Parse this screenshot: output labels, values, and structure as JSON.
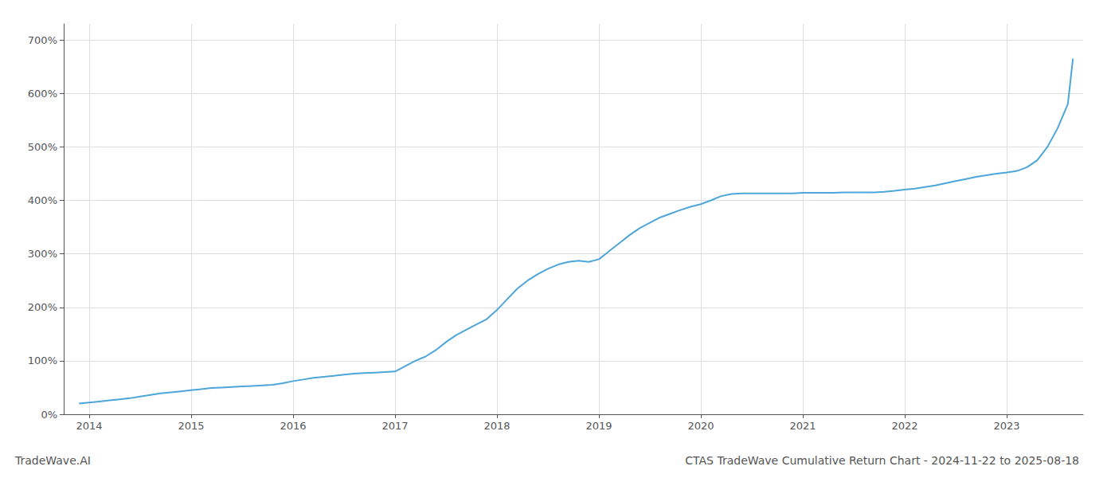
{
  "chart_data": {
    "type": "line",
    "title": "CTAS TradeWave Cumulative Return Chart - 2024-11-22 to 2025-08-18",
    "annotations": [
      {
        "text": "TradeWave.AI"
      }
    ],
    "color": "#4da6d9",
    "grid": true,
    "x": [
      2013.9,
      2014.0,
      2014.1,
      2014.2,
      2014.3,
      2014.4,
      2014.5,
      2014.6,
      2014.7,
      2014.8,
      2014.9,
      2015.0,
      2015.1,
      2015.2,
      2015.3,
      2015.4,
      2015.5,
      2015.6,
      2015.7,
      2015.8,
      2015.9,
      2016.0,
      2016.1,
      2016.2,
      2016.3,
      2016.4,
      2016.5,
      2016.6,
      2016.7,
      2016.8,
      2016.9,
      2017.0,
      2017.1,
      2017.2,
      2017.3,
      2017.4,
      2017.5,
      2017.6,
      2017.7,
      2017.8,
      2017.9,
      2018.0,
      2018.1,
      2018.2,
      2018.3,
      2018.4,
      2018.5,
      2018.6,
      2018.7,
      2018.8,
      2018.9,
      2019.0,
      2019.1,
      2019.2,
      2019.3,
      2019.4,
      2019.5,
      2019.6,
      2019.7,
      2019.8,
      2019.9,
      2020.0,
      2020.1,
      2020.2,
      2020.3,
      2020.4,
      2020.5,
      2020.6,
      2020.7,
      2020.8,
      2020.9,
      2021.0,
      2021.1,
      2021.2,
      2021.3,
      2021.4,
      2021.5,
      2021.6,
      2021.7,
      2021.8,
      2021.9,
      2022.0,
      2022.1,
      2022.2,
      2022.3,
      2022.4,
      2022.5,
      2022.6,
      2022.7,
      2022.8,
      2022.9,
      2023.0,
      2023.1,
      2023.2,
      2023.3,
      2023.4,
      2023.5,
      2023.6,
      2023.65
    ],
    "values": [
      20,
      22,
      24,
      26,
      28,
      30,
      33,
      36,
      39,
      41,
      43,
      45,
      47,
      49,
      50,
      51,
      52,
      53,
      54,
      55,
      58,
      62,
      65,
      68,
      70,
      72,
      74,
      76,
      77,
      78,
      79,
      80,
      90,
      100,
      108,
      120,
      135,
      148,
      158,
      168,
      178,
      195,
      215,
      235,
      250,
      262,
      272,
      280,
      285,
      287,
      285,
      290,
      305,
      320,
      335,
      348,
      358,
      368,
      375,
      382,
      388,
      393,
      400,
      408,
      412,
      413,
      413,
      413,
      413,
      413,
      413,
      414,
      414,
      414,
      414,
      415,
      415,
      415,
      415,
      416,
      418,
      420,
      422,
      425,
      428,
      432,
      436,
      440,
      444,
      447,
      450,
      452,
      455,
      462,
      475,
      500,
      535,
      580,
      665
    ],
    "xlim": [
      2013.75,
      2023.75
    ],
    "xticks": [
      2014,
      2015,
      2016,
      2017,
      2018,
      2019,
      2020,
      2021,
      2022,
      2023
    ],
    "ylim": [
      0,
      730
    ],
    "yticks": [
      {
        "value": 0,
        "label": "0%"
      },
      {
        "value": 100,
        "label": "100%"
      },
      {
        "value": 200,
        "label": "200%"
      },
      {
        "value": 300,
        "label": "300%"
      },
      {
        "value": 400,
        "label": "400%"
      },
      {
        "value": 500,
        "label": "500%"
      },
      {
        "value": 600,
        "label": "600%"
      },
      {
        "value": 700,
        "label": "700%"
      }
    ]
  }
}
